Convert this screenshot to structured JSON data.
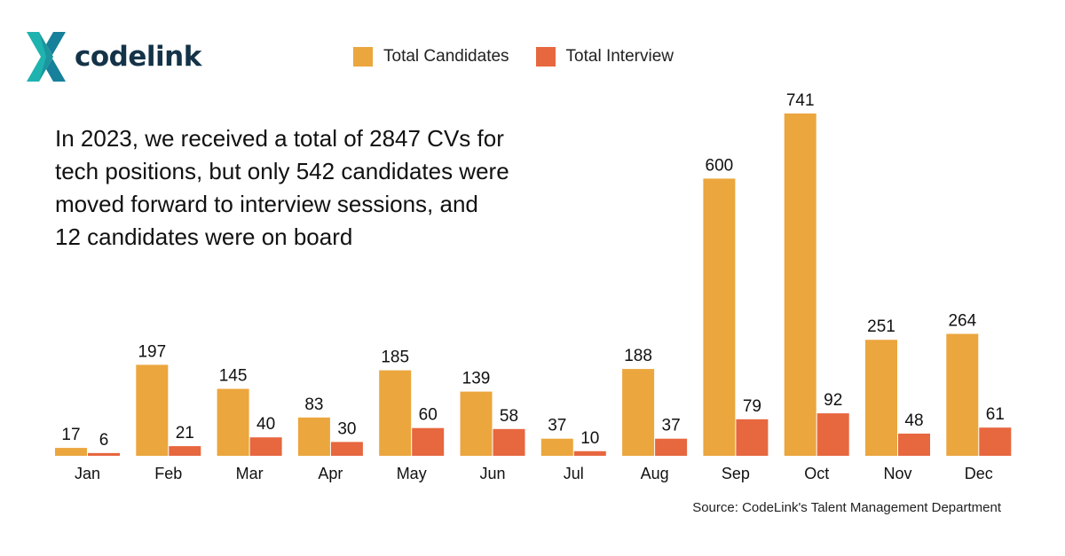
{
  "brand": {
    "name": "codelink",
    "logo": "codelink-x-logo-icon"
  },
  "headline_lines": [
    "In 2023, we received a total of 2847 CVs for",
    "tech positions, but only 542 candidates were",
    "moved forward to interview sessions, and",
    "12 candidates were on board"
  ],
  "source": "Source: CodeLink's Talent Management Department",
  "chart_data": {
    "type": "bar",
    "title": "",
    "xlabel": "",
    "ylabel": "",
    "categories": [
      "Jan",
      "Feb",
      "Mar",
      "Apr",
      "May",
      "Jun",
      "Jul",
      "Aug",
      "Sep",
      "Oct",
      "Nov",
      "Dec"
    ],
    "series": [
      {
        "name": "Total Candidates",
        "color": "#EBA63E",
        "values": [
          17,
          197,
          145,
          83,
          185,
          139,
          37,
          188,
          600,
          741,
          251,
          264
        ]
      },
      {
        "name": "Total Interview",
        "color": "#E7673F",
        "values": [
          6,
          21,
          40,
          30,
          60,
          58,
          10,
          37,
          79,
          92,
          48,
          61
        ]
      }
    ],
    "ylim": [
      0,
      741
    ],
    "grid": false,
    "legend": "top",
    "data_labels": true
  }
}
